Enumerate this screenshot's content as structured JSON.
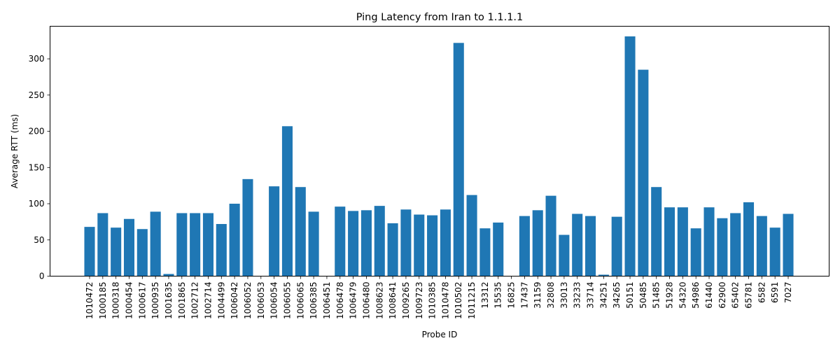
{
  "chart_data": {
    "type": "bar",
    "title": "Ping Latency from Iran to 1.1.1.1",
    "xlabel": "Probe ID",
    "ylabel": "Average RTT (ms)",
    "ylim": [
      0,
      345
    ],
    "yticks": [
      0,
      50,
      100,
      150,
      200,
      250,
      300
    ],
    "grid": false,
    "bar_color": "#1f77b4",
    "categories": [
      "1010472",
      "1000185",
      "1000318",
      "1000454",
      "1000617",
      "1000935",
      "1001635",
      "1001865",
      "1002712",
      "1002714",
      "1004499",
      "1006042",
      "1006052",
      "1006053",
      "1006054",
      "1006055",
      "1006065",
      "1006385",
      "1006451",
      "1006478",
      "1006479",
      "1006480",
      "1008623",
      "1008641",
      "1009265",
      "1009723",
      "1010385",
      "1010478",
      "1010502",
      "1011215",
      "13312",
      "15535",
      "16825",
      "17437",
      "31159",
      "32808",
      "33013",
      "33233",
      "33714",
      "34251",
      "34265",
      "50151",
      "50485",
      "51485",
      "51928",
      "54320",
      "54986",
      "61440",
      "62900",
      "65402",
      "65781",
      "6582",
      "6591",
      "7027"
    ],
    "values": [
      68,
      87,
      67,
      79,
      65,
      89,
      3,
      87,
      87,
      87,
      72,
      100,
      134,
      0,
      124,
      207,
      123,
      89,
      0,
      96,
      90,
      91,
      97,
      73,
      92,
      85,
      84,
      92,
      322,
      112,
      66,
      74,
      0,
      83,
      91,
      111,
      57,
      86,
      83,
      2,
      82,
      331,
      285,
      123,
      95,
      95,
      66,
      95,
      80,
      87,
      102,
      83,
      67,
      86
    ]
  }
}
